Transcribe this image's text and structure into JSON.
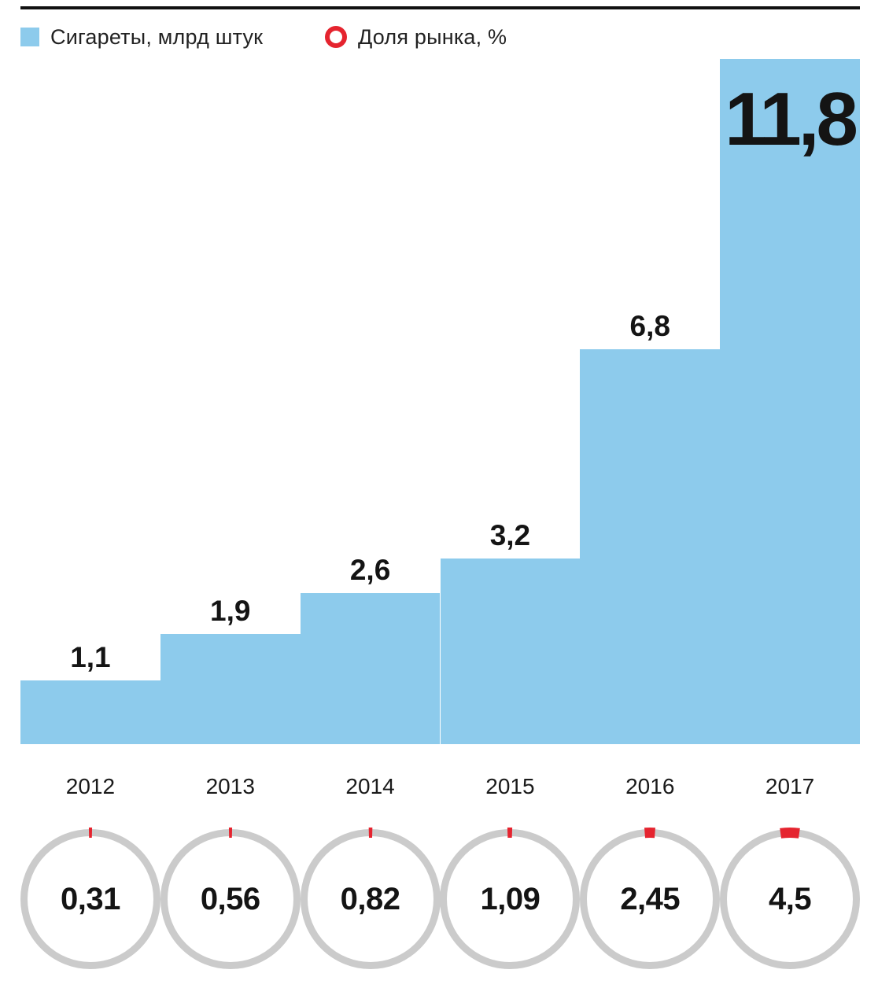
{
  "legend": {
    "bars_label": "Сигареты, млрд штук",
    "share_label": "Доля рынка, %"
  },
  "colors": {
    "bar_blue": "#8DCBEC",
    "accent_red": "#E5242F",
    "ring_gray": "#CBCBCB",
    "text_black": "#1A1A1A"
  },
  "chart_data": {
    "type": "bar",
    "categories": [
      "2012",
      "2013",
      "2014",
      "2015",
      "2016",
      "2017"
    ],
    "series": [
      {
        "name": "Сигареты, млрд штук",
        "values": [
          1.1,
          1.9,
          2.6,
          3.2,
          6.8,
          11.8
        ]
      },
      {
        "name": "Доля рынка, %",
        "values": [
          0.31,
          0.56,
          0.82,
          1.09,
          2.45,
          4.5
        ]
      }
    ],
    "bar_value_labels": [
      "1,1",
      "1,9",
      "2,6",
      "3,2",
      "6,8",
      "11,8"
    ],
    "share_value_labels": [
      "0,31",
      "0,56",
      "0,82",
      "1,09",
      "2,45",
      "4,5"
    ],
    "ylim": [
      0,
      11.8
    ],
    "grid": false,
    "legend_position": "top",
    "notes": "step-style adjacent bars; market share shown as gray rings with red arc proportional to percent, arc centered at 12 o'clock"
  }
}
